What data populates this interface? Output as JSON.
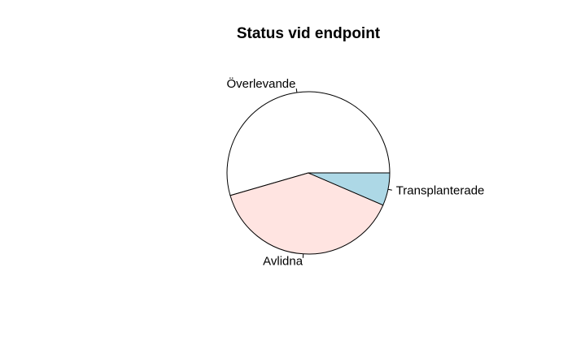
{
  "chart_data": {
    "type": "pie",
    "title": "Status vid endpoint",
    "labels": [
      "Överlevande",
      "Avlidna",
      "Transplanterade"
    ],
    "values": [
      54.5,
      39.0,
      6.5
    ],
    "colors": [
      "#ffffff",
      "#ffe4e1",
      "#add8e6"
    ],
    "start_angle_deg": 0,
    "direction": "counterclockwise"
  }
}
